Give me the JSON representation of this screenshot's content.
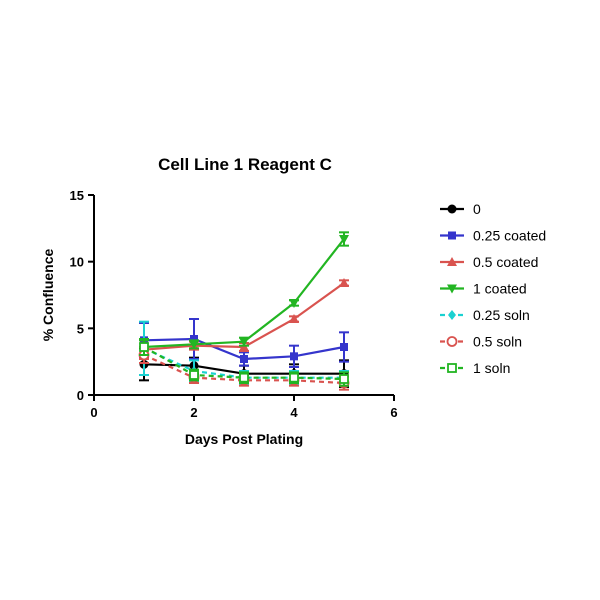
{
  "chart_data": {
    "type": "line",
    "title": "Cell Line 1 Reagent C",
    "xlabel": "Days Post Plating",
    "ylabel": "% Confluence",
    "xlim": [
      0,
      6
    ],
    "ylim": [
      0,
      15
    ],
    "xticks": [
      0,
      2,
      4,
      6
    ],
    "yticks": [
      0,
      5,
      10,
      15
    ],
    "grid": false,
    "legend_position": "right",
    "series": [
      {
        "name": "0",
        "color": "#000000",
        "marker": "circle",
        "dashed": false,
        "x": [
          1,
          2,
          3,
          4,
          5
        ],
        "y": [
          2.3,
          2.2,
          1.6,
          1.6,
          1.6
        ],
        "err": [
          1.2,
          0.6,
          0.6,
          0.7,
          1.0
        ]
      },
      {
        "name": "0.25 coated",
        "color": "#3535cc",
        "marker": "square",
        "dashed": false,
        "x": [
          1,
          2,
          3,
          4,
          5
        ],
        "y": [
          4.1,
          4.2,
          2.7,
          2.9,
          3.6
        ],
        "err": [
          1.3,
          1.5,
          0.5,
          0.8,
          1.1
        ]
      },
      {
        "name": "0.5 coated",
        "color": "#d9534f",
        "marker": "triangle-up",
        "dashed": false,
        "x": [
          1,
          2,
          3,
          4,
          5
        ],
        "y": [
          3.4,
          3.7,
          3.6,
          5.7,
          8.4
        ],
        "err": [
          0.7,
          0.3,
          0.3,
          0.2,
          0.2
        ]
      },
      {
        "name": "1 coated",
        "color": "#22b522",
        "marker": "triangle-down",
        "dashed": false,
        "x": [
          1,
          2,
          3,
          4,
          5
        ],
        "y": [
          3.6,
          3.8,
          4.0,
          6.9,
          11.7
        ],
        "err": [
          0.5,
          0.3,
          0.3,
          0.2,
          0.5
        ]
      },
      {
        "name": "0.25 soln",
        "color": "#1ad1d1",
        "marker": "diamond",
        "dashed": true,
        "x": [
          1,
          2,
          3,
          4,
          5
        ],
        "y": [
          3.5,
          1.8,
          1.3,
          1.3,
          1.3
        ],
        "err": [
          2.0,
          0.8,
          0.5,
          0.5,
          0.5
        ]
      },
      {
        "name": "0.5 soln",
        "color": "#d9534f",
        "marker": "circle-open",
        "dashed": true,
        "x": [
          1,
          2,
          3,
          4,
          5
        ],
        "y": [
          3.0,
          1.3,
          1.1,
          1.1,
          0.9
        ],
        "err": [
          0.6,
          0.4,
          0.4,
          0.4,
          0.5
        ]
      },
      {
        "name": "1 soln",
        "color": "#22b522",
        "marker": "square-open",
        "dashed": true,
        "x": [
          1,
          2,
          3,
          4,
          5
        ],
        "y": [
          3.6,
          1.5,
          1.3,
          1.3,
          1.2
        ],
        "err": [
          0.6,
          0.4,
          0.4,
          0.4,
          0.5
        ]
      }
    ]
  }
}
